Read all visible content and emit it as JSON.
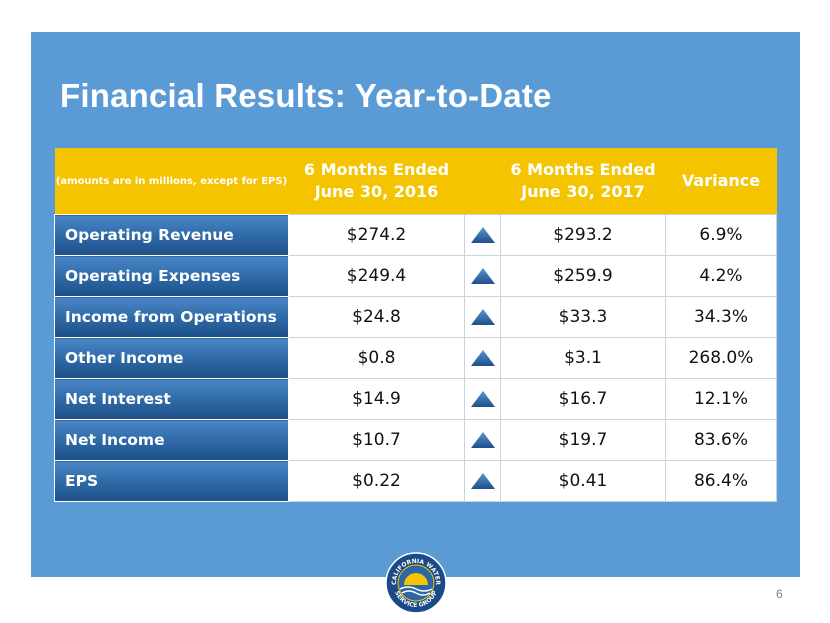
{
  "slide": {
    "title": "Financial Results: Year-to-Date",
    "page_number": "6"
  },
  "table": {
    "headers": {
      "note": "(amounts are in millions, except for EPS)",
      "period_2016_line1": "6 Months Ended",
      "period_2016_line2": "June 30, 2016",
      "period_2017_line1": "6 Months Ended",
      "period_2017_line2": "June 30, 2017",
      "variance": "Variance"
    },
    "rows": [
      {
        "label": "Operating Revenue",
        "y2016": "$274.2",
        "trend": "up",
        "y2017": "$293.2",
        "variance": "6.9%"
      },
      {
        "label": "Operating Expenses",
        "y2016": "$249.4",
        "trend": "up",
        "y2017": "$259.9",
        "variance": "4.2%"
      },
      {
        "label": "Income from Operations",
        "y2016": "$24.8",
        "trend": "up",
        "y2017": "$33.3",
        "variance": "34.3%"
      },
      {
        "label": "Other Income",
        "y2016": "$0.8",
        "trend": "up",
        "y2017": "$3.1",
        "variance": "268.0%"
      },
      {
        "label": "Net Interest",
        "y2016": "$14.9",
        "trend": "up",
        "y2017": "$16.7",
        "variance": "12.1%"
      },
      {
        "label": "Net Income",
        "y2016": "$10.7",
        "trend": "up",
        "y2017": "$19.7",
        "variance": "83.6%"
      },
      {
        "label": "EPS",
        "y2016": "$0.22",
        "trend": "up",
        "y2017": "$0.41",
        "variance": "86.4%"
      }
    ]
  },
  "logo": {
    "text_top": "CALIFORNIA WATER",
    "text_bottom": "SERVICE GROUP"
  },
  "colors": {
    "panel": "#5b9bd5",
    "header": "#f5c400",
    "row_label": "#2f6aa8",
    "arrow": "#2f6aa8"
  }
}
